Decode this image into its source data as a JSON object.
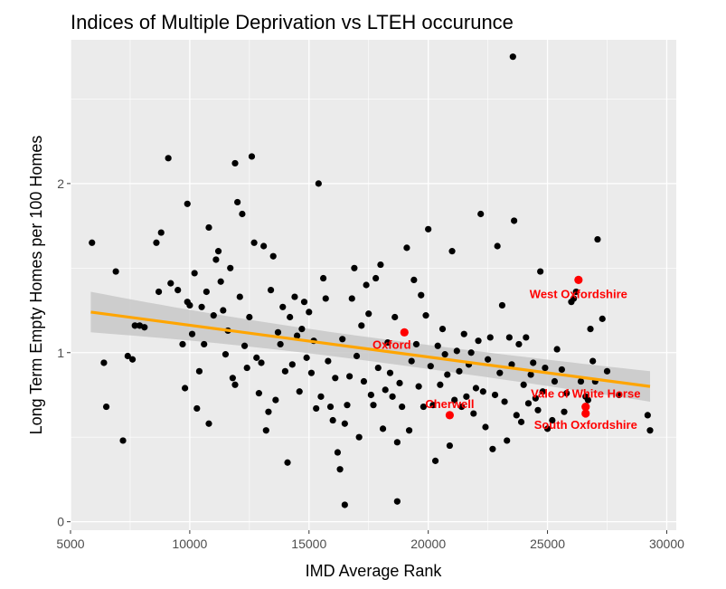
{
  "chart_data": {
    "type": "scatter",
    "title": "Indices of Multiple Deprivation vs LTEH occurunce",
    "xlabel": "IMD Average Rank",
    "ylabel": "Long Term Empty Homes per 100 Homes",
    "xlim": [
      5000,
      30400
    ],
    "ylim": [
      -0.05,
      2.85
    ],
    "x_ticks": [
      5000,
      10000,
      15000,
      20000,
      25000,
      30000
    ],
    "y_ticks": [
      0,
      1,
      2
    ],
    "grid": true,
    "colors": {
      "panel": "#ebebeb",
      "grid": "#ffffff",
      "points": "#000000",
      "highlight": "#ff0000",
      "trend": "#ffa500",
      "confidence_band": "#c8c8c8"
    },
    "trend_line": {
      "x": [
        5850,
        29300
      ],
      "y": [
        1.24,
        0.8
      ],
      "ci_halfwidth": [
        0.12,
        0.07,
        0.09
      ]
    },
    "highlighted_points": [
      {
        "label": "West Oxfordshire",
        "x": 26300,
        "y": 1.43
      },
      {
        "label": "Oxford",
        "x": 19000,
        "y": 1.12
      },
      {
        "label": "Cherwell",
        "x": 20900,
        "y": 0.63
      },
      {
        "label": "Vale of White Horse",
        "x": 26600,
        "y": 0.68
      },
      {
        "label": "South Oxfordshire",
        "x": 26600,
        "y": 0.64
      }
    ],
    "points": [
      [
        5900,
        1.65
      ],
      [
        6400,
        0.94
      ],
      [
        6500,
        0.68
      ],
      [
        6900,
        1.48
      ],
      [
        7200,
        0.48
      ],
      [
        7400,
        0.98
      ],
      [
        7600,
        0.96
      ],
      [
        7700,
        1.16
      ],
      [
        7900,
        1.16
      ],
      [
        8100,
        1.15
      ],
      [
        8600,
        1.65
      ],
      [
        8700,
        1.36
      ],
      [
        8800,
        1.71
      ],
      [
        9100,
        2.15
      ],
      [
        9200,
        1.41
      ],
      [
        9500,
        1.37
      ],
      [
        9700,
        1.05
      ],
      [
        9800,
        0.79
      ],
      [
        9900,
        1.88
      ],
      [
        9900,
        1.3
      ],
      [
        10000,
        1.28
      ],
      [
        10100,
        1.11
      ],
      [
        10200,
        1.47
      ],
      [
        10300,
        0.67
      ],
      [
        10400,
        0.89
      ],
      [
        10500,
        1.27
      ],
      [
        10600,
        1.05
      ],
      [
        10700,
        1.36
      ],
      [
        10800,
        1.74
      ],
      [
        10800,
        0.58
      ],
      [
        11000,
        1.22
      ],
      [
        11100,
        1.55
      ],
      [
        11200,
        1.6
      ],
      [
        11300,
        1.42
      ],
      [
        11400,
        1.25
      ],
      [
        11500,
        0.99
      ],
      [
        11600,
        1.13
      ],
      [
        11700,
        1.5
      ],
      [
        11800,
        0.85
      ],
      [
        11900,
        0.81
      ],
      [
        11900,
        2.12
      ],
      [
        12000,
        1.89
      ],
      [
        12100,
        1.33
      ],
      [
        12200,
        1.82
      ],
      [
        12300,
        1.04
      ],
      [
        12400,
        0.91
      ],
      [
        12500,
        1.21
      ],
      [
        12600,
        2.16
      ],
      [
        12700,
        1.65
      ],
      [
        12800,
        0.97
      ],
      [
        12900,
        0.76
      ],
      [
        13000,
        0.94
      ],
      [
        13100,
        1.63
      ],
      [
        13200,
        0.54
      ],
      [
        13300,
        0.65
      ],
      [
        13400,
        1.37
      ],
      [
        13500,
        1.57
      ],
      [
        13600,
        0.72
      ],
      [
        13700,
        1.12
      ],
      [
        13800,
        1.05
      ],
      [
        13900,
        1.27
      ],
      [
        14000,
        0.89
      ],
      [
        14100,
        0.35
      ],
      [
        14200,
        1.21
      ],
      [
        14300,
        0.93
      ],
      [
        14400,
        1.33
      ],
      [
        14500,
        1.1
      ],
      [
        14600,
        0.77
      ],
      [
        14700,
        1.14
      ],
      [
        14800,
        1.3
      ],
      [
        14900,
        0.97
      ],
      [
        15000,
        1.24
      ],
      [
        15100,
        0.88
      ],
      [
        15200,
        1.07
      ],
      [
        15300,
        0.67
      ],
      [
        15400,
        2.0
      ],
      [
        15500,
        0.74
      ],
      [
        15600,
        1.44
      ],
      [
        15700,
        1.32
      ],
      [
        15800,
        0.95
      ],
      [
        15900,
        0.68
      ],
      [
        16000,
        0.6
      ],
      [
        16100,
        0.85
      ],
      [
        16200,
        0.41
      ],
      [
        16300,
        0.31
      ],
      [
        16400,
        1.08
      ],
      [
        16500,
        0.58
      ],
      [
        16500,
        0.1
      ],
      [
        16600,
        0.69
      ],
      [
        16700,
        0.86
      ],
      [
        16800,
        1.32
      ],
      [
        16900,
        1.5
      ],
      [
        17000,
        0.98
      ],
      [
        17100,
        0.5
      ],
      [
        17200,
        1.16
      ],
      [
        17300,
        0.83
      ],
      [
        17400,
        1.4
      ],
      [
        17500,
        1.23
      ],
      [
        17600,
        0.75
      ],
      [
        17700,
        0.69
      ],
      [
        17800,
        1.44
      ],
      [
        17900,
        0.91
      ],
      [
        18000,
        1.52
      ],
      [
        18100,
        0.55
      ],
      [
        18200,
        0.78
      ],
      [
        18300,
        1.06
      ],
      [
        18400,
        0.88
      ],
      [
        18500,
        0.74
      ],
      [
        18600,
        1.21
      ],
      [
        18700,
        0.47
      ],
      [
        18700,
        0.12
      ],
      [
        18800,
        0.82
      ],
      [
        18900,
        0.68
      ],
      [
        19100,
        1.62
      ],
      [
        19200,
        0.54
      ],
      [
        19300,
        0.95
      ],
      [
        19400,
        1.43
      ],
      [
        19500,
        1.05
      ],
      [
        19600,
        0.8
      ],
      [
        19700,
        1.34
      ],
      [
        19800,
        0.68
      ],
      [
        19900,
        1.22
      ],
      [
        20000,
        1.73
      ],
      [
        20100,
        0.92
      ],
      [
        20200,
        0.69
      ],
      [
        20300,
        0.36
      ],
      [
        20400,
        1.04
      ],
      [
        20500,
        0.81
      ],
      [
        20600,
        1.14
      ],
      [
        20700,
        0.99
      ],
      [
        20800,
        0.87
      ],
      [
        20900,
        0.45
      ],
      [
        21000,
        1.6
      ],
      [
        21100,
        0.72
      ],
      [
        21200,
        1.01
      ],
      [
        21300,
        0.89
      ],
      [
        21400,
        0.68
      ],
      [
        21500,
        1.11
      ],
      [
        21600,
        0.74
      ],
      [
        21700,
        0.93
      ],
      [
        21800,
        1.0
      ],
      [
        21900,
        0.64
      ],
      [
        22000,
        0.79
      ],
      [
        22100,
        1.07
      ],
      [
        22200,
        1.82
      ],
      [
        22300,
        0.77
      ],
      [
        22400,
        0.56
      ],
      [
        22500,
        0.96
      ],
      [
        22600,
        1.09
      ],
      [
        22700,
        0.43
      ],
      [
        22800,
        0.75
      ],
      [
        22900,
        1.63
      ],
      [
        23000,
        0.88
      ],
      [
        23100,
        1.28
      ],
      [
        23200,
        0.71
      ],
      [
        23300,
        0.48
      ],
      [
        23400,
        1.09
      ],
      [
        23500,
        0.93
      ],
      [
        23600,
        1.78
      ],
      [
        23700,
        0.63
      ],
      [
        23800,
        1.05
      ],
      [
        23900,
        0.59
      ],
      [
        24000,
        0.81
      ],
      [
        24100,
        1.09
      ],
      [
        24200,
        0.7
      ],
      [
        24300,
        0.87
      ],
      [
        24400,
        0.94
      ],
      [
        24500,
        0.73
      ],
      [
        24600,
        0.66
      ],
      [
        24700,
        1.48
      ],
      [
        24800,
        0.77
      ],
      [
        24900,
        0.91
      ],
      [
        25000,
        0.55
      ],
      [
        25200,
        0.6
      ],
      [
        25300,
        0.83
      ],
      [
        25400,
        1.02
      ],
      [
        25600,
        0.9
      ],
      [
        25700,
        0.65
      ],
      [
        25800,
        0.76
      ],
      [
        26000,
        1.3
      ],
      [
        26100,
        1.32
      ],
      [
        26200,
        1.36
      ],
      [
        26400,
        0.83
      ],
      [
        26600,
        0.74
      ],
      [
        26700,
        0.72
      ],
      [
        26800,
        1.14
      ],
      [
        26900,
        0.95
      ],
      [
        27000,
        0.83
      ],
      [
        27100,
        1.67
      ],
      [
        27300,
        1.2
      ],
      [
        27500,
        0.89
      ],
      [
        28000,
        0.75
      ],
      [
        29200,
        0.63
      ],
      [
        29300,
        0.54
      ],
      [
        23550,
        2.75
      ]
    ]
  }
}
